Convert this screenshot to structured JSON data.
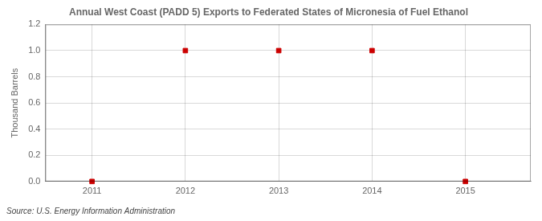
{
  "chart_data": {
    "type": "scatter",
    "title": "Annual West Coast (PADD 5) Exports to Federated States of Micronesia of Fuel Ethanol",
    "ylabel": "Thousand Barrels",
    "source": "Source: U.S. Energy Information Administration",
    "x": [
      2011,
      2012,
      2013,
      2014,
      2015
    ],
    "values": [
      0,
      1,
      1,
      1,
      0
    ],
    "color": "#cc0000",
    "marker": "square",
    "xlim": [
      2010.5,
      2015.7
    ],
    "ylim": [
      0,
      1.2
    ],
    "xticks": [
      2011,
      2012,
      2013,
      2014,
      2015
    ],
    "yticks": [
      {
        "value": 0,
        "label": "0.0"
      },
      0.2,
      0.4,
      0.6,
      0.8,
      {
        "value": 1,
        "label": "1.0"
      },
      1.2
    ],
    "grid": true
  }
}
